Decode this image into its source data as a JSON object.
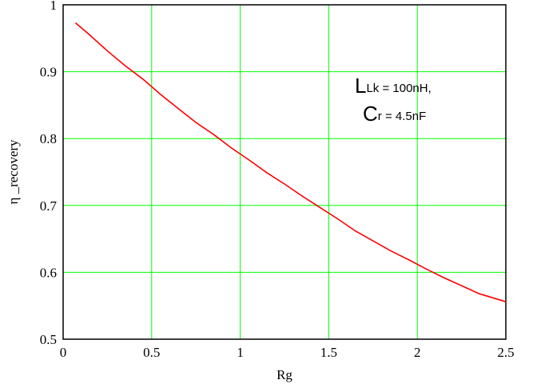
{
  "chart_data": {
    "type": "line",
    "xlabel": "Rg",
    "ylabel": "η _recovery",
    "xlim": [
      0,
      2.5
    ],
    "ylim": [
      0.5,
      1
    ],
    "grid": true,
    "x_ticks": [
      "0",
      "0.5",
      "1",
      "1.5",
      "2",
      "2.5"
    ],
    "y_ticks": [
      "0.5",
      "0.6",
      "0.7",
      "0.8",
      "0.9",
      "1"
    ],
    "colors": {
      "series": "#ff0000",
      "grid": "#00ff00",
      "frame": "#000000"
    },
    "annotation": {
      "line1_main": "L",
      "line1_sub": "Lk = 100nH,",
      "line2_main": "C",
      "line2_sub": "r = 4.5nF"
    },
    "series": [
      {
        "x": [
          0.07,
          0.15,
          0.25,
          0.35,
          0.45,
          0.55,
          0.65,
          0.75,
          0.85,
          0.95,
          1.05,
          1.15,
          1.25,
          1.35,
          1.45,
          1.55,
          1.65,
          1.75,
          1.85,
          1.95,
          2.05,
          2.15,
          2.25,
          2.35,
          2.45,
          2.5
        ],
        "y": [
          0.973,
          0.955,
          0.931,
          0.909,
          0.889,
          0.866,
          0.845,
          0.824,
          0.806,
          0.786,
          0.768,
          0.749,
          0.732,
          0.714,
          0.697,
          0.68,
          0.662,
          0.647,
          0.632,
          0.619,
          0.605,
          0.592,
          0.58,
          0.568,
          0.56,
          0.556
        ]
      }
    ]
  }
}
